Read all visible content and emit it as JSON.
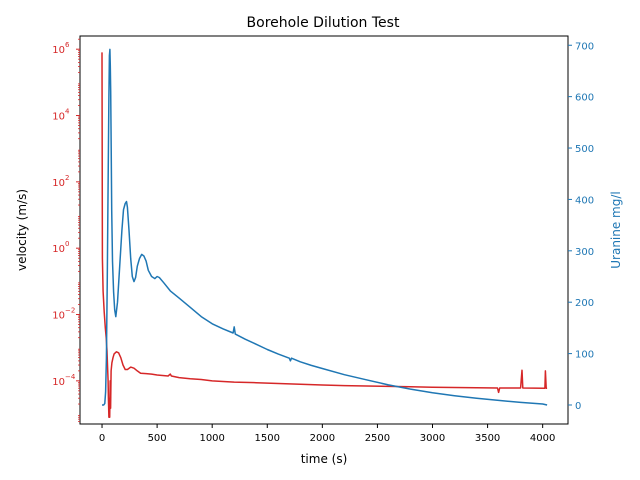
{
  "chart_data": {
    "type": "line",
    "title": "Borehole Dilution Test",
    "xlabel": "time (s)",
    "xlim": [
      -200,
      4230
    ],
    "x_ticks": [
      0,
      500,
      1000,
      1500,
      2000,
      2500,
      3000,
      3500,
      4000
    ],
    "y_left": {
      "label": "velocity (m/s)",
      "scale": "log",
      "lim": [
        5e-06,
        2500000.0
      ],
      "ticks": [
        {
          "value": 0.0001,
          "mantissa": "10",
          "exp": "−4"
        },
        {
          "value": 0.01,
          "mantissa": "10",
          "exp": "−2"
        },
        {
          "value": 1,
          "mantissa": "10",
          "exp": "0"
        },
        {
          "value": 100,
          "mantissa": "10",
          "exp": "2"
        },
        {
          "value": 10000,
          "mantissa": "10",
          "exp": "4"
        },
        {
          "value": 1000000,
          "mantissa": "10",
          "exp": "6"
        }
      ],
      "color": "#d62728"
    },
    "y_right": {
      "label": "Uranine mg/l",
      "scale": "linear",
      "lim": [
        -37,
        718
      ],
      "ticks": [
        0,
        100,
        200,
        300,
        400,
        500,
        600,
        700
      ],
      "color": "#1f77b4"
    },
    "series": [
      {
        "axis": "left",
        "color": "#d62728",
        "points": [
          [
            0,
            800000
          ],
          [
            3,
            0.5
          ],
          [
            10,
            0.05
          ],
          [
            20,
            0.012
          ],
          [
            30,
            0.004
          ],
          [
            38,
            0.002
          ],
          [
            45,
            0.0008
          ],
          [
            50,
            0.0003
          ],
          [
            55,
            0.0001
          ],
          [
            58,
            3e-05
          ],
          [
            62,
            8e-06
          ],
          [
            66,
            3e-05
          ],
          [
            70,
            8e-06
          ],
          [
            74,
            0.0001
          ],
          [
            78,
            1.5e-05
          ],
          [
            82,
            0.0002
          ],
          [
            90,
            0.00035
          ],
          [
            100,
            0.0005
          ],
          [
            110,
            0.00065
          ],
          [
            130,
            0.00075
          ],
          [
            150,
            0.0007
          ],
          [
            170,
            0.0005
          ],
          [
            190,
            0.0003
          ],
          [
            210,
            0.00022
          ],
          [
            230,
            0.00022
          ],
          [
            260,
            0.00026
          ],
          [
            290,
            0.00024
          ],
          [
            320,
            0.0002
          ],
          [
            350,
            0.00017
          ],
          [
            400,
            0.000165
          ],
          [
            450,
            0.00016
          ],
          [
            500,
            0.00015
          ],
          [
            550,
            0.000145
          ],
          [
            600,
            0.00014
          ],
          [
            620,
            0.00016
          ],
          [
            630,
            0.00014
          ],
          [
            700,
            0.000125
          ],
          [
            800,
            0.000115
          ],
          [
            900,
            0.00011
          ],
          [
            1000,
            0.0001
          ],
          [
            1200,
            9.2e-05
          ],
          [
            1400,
            8.8e-05
          ],
          [
            1600,
            8.3e-05
          ],
          [
            1800,
            7.9e-05
          ],
          [
            2000,
            7.5e-05
          ],
          [
            2200,
            7.2e-05
          ],
          [
            2400,
            7e-05
          ],
          [
            2600,
            6.8e-05
          ],
          [
            2800,
            6.6e-05
          ],
          [
            3000,
            6.4e-05
          ],
          [
            3200,
            6.3e-05
          ],
          [
            3400,
            6.2e-05
          ],
          [
            3590,
            6.1e-05
          ],
          [
            3600,
            4.5e-05
          ],
          [
            3610,
            6.1e-05
          ],
          [
            3800,
            6.1e-05
          ],
          [
            3812,
            0.00021
          ],
          [
            3820,
            6.1e-05
          ],
          [
            4020,
            6e-05
          ],
          [
            4025,
            0.0002
          ],
          [
            4032,
            6e-05
          ],
          [
            4040,
            6e-05
          ]
        ]
      },
      {
        "axis": "right",
        "color": "#1f77b4",
        "points": [
          [
            0,
            0
          ],
          [
            15,
            0
          ],
          [
            25,
            3
          ],
          [
            32,
            25
          ],
          [
            40,
            90
          ],
          [
            48,
            250
          ],
          [
            56,
            450
          ],
          [
            62,
            600
          ],
          [
            67,
            680
          ],
          [
            71,
            692
          ],
          [
            75,
            660
          ],
          [
            79,
            610
          ],
          [
            83,
            500
          ],
          [
            88,
            380
          ],
          [
            95,
            280
          ],
          [
            105,
            220
          ],
          [
            115,
            185
          ],
          [
            125,
            172
          ],
          [
            140,
            200
          ],
          [
            160,
            270
          ],
          [
            180,
            340
          ],
          [
            195,
            380
          ],
          [
            210,
            392
          ],
          [
            222,
            396
          ],
          [
            230,
            385
          ],
          [
            245,
            340
          ],
          [
            260,
            285
          ],
          [
            275,
            250
          ],
          [
            290,
            240
          ],
          [
            305,
            248
          ],
          [
            320,
            270
          ],
          [
            340,
            285
          ],
          [
            360,
            293
          ],
          [
            380,
            290
          ],
          [
            400,
            280
          ],
          [
            420,
            262
          ],
          [
            450,
            250
          ],
          [
            480,
            246
          ],
          [
            500,
            250
          ],
          [
            520,
            248
          ],
          [
            560,
            238
          ],
          [
            620,
            222
          ],
          [
            700,
            208
          ],
          [
            800,
            190
          ],
          [
            900,
            172
          ],
          [
            1000,
            158
          ],
          [
            1100,
            148
          ],
          [
            1190,
            140
          ],
          [
            1200,
            152
          ],
          [
            1210,
            138
          ],
          [
            1300,
            128
          ],
          [
            1400,
            118
          ],
          [
            1500,
            108
          ],
          [
            1600,
            99
          ],
          [
            1700,
            91
          ],
          [
            1710,
            86
          ],
          [
            1720,
            91
          ],
          [
            1800,
            84
          ],
          [
            1900,
            77
          ],
          [
            2000,
            71
          ],
          [
            2200,
            59
          ],
          [
            2400,
            49
          ],
          [
            2600,
            39
          ],
          [
            2800,
            31
          ],
          [
            3000,
            24
          ],
          [
            3200,
            18
          ],
          [
            3400,
            13
          ],
          [
            3600,
            9
          ],
          [
            3800,
            5
          ],
          [
            4000,
            2
          ],
          [
            4040,
            0
          ]
        ]
      }
    ],
    "grid": false
  }
}
